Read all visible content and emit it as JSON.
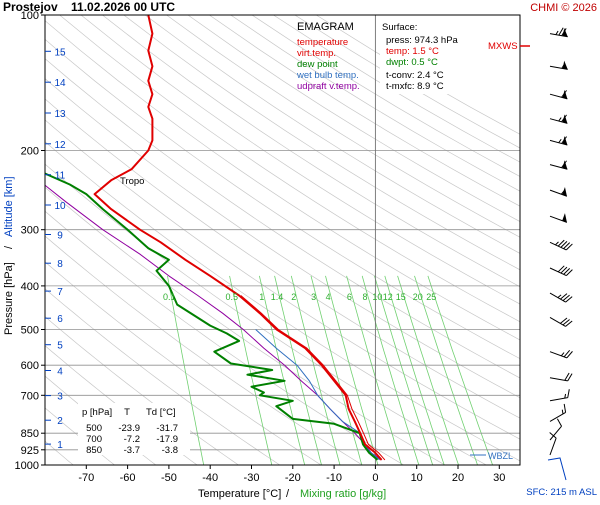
{
  "header": {
    "station_date": "Prostejov    11.02.2026 00 UTC",
    "credit": "CHMI © 2026"
  },
  "legend": {
    "title": "EMAGRAM",
    "entries": [
      {
        "label": "temperature",
        "color": "#e00000"
      },
      {
        "label": "virt.temp.",
        "color": "#e00000"
      },
      {
        "label": "dew point",
        "color": "#008000"
      },
      {
        "label": "wet bulb temp.",
        "color": "#3070c0"
      },
      {
        "label": "udpraft v.temp.",
        "color": "#9000a0"
      }
    ]
  },
  "surface": {
    "title": "Surface:",
    "press": "press: 974.3 hPa",
    "temp": "temp: 1.5 °C",
    "dwpt": "dwpt: 0.5 °C",
    "tconv": "t-conv: 2.4 °C",
    "tmxfc": "t-mxfc: 8.9 °C"
  },
  "level_table": {
    "header": [
      "p [hPa]",
      "T",
      "Td [°C]"
    ],
    "rows": [
      [
        "500",
        "-23.9",
        "-31.7"
      ],
      [
        "700",
        "-7.2",
        "-17.9"
      ],
      [
        "850",
        "-3.7",
        "-3.8"
      ]
    ]
  },
  "annotations": {
    "tropo": "Tropo",
    "wbzl": "WBZL",
    "mxws": "MXWS",
    "sfc": "SFC: 215 m ASL"
  },
  "axes": {
    "xlabel_temp": "Temperature [°C]",
    "xlabel_sep": "/",
    "xlabel_mix": "Mixing ratio [g/kg]",
    "ylabel_press": "Pressure [hPa]",
    "ylabel_sep": "/",
    "ylabel_alt": "Altitude [km]"
  },
  "colors": {
    "temperature": "#e00000",
    "dewpoint": "#008000",
    "wetbulb": "#3070c0",
    "parcel": "#9000a0",
    "mixing": "#70d070",
    "adiabat": "#c8c8c8",
    "axis_blue": "#0040c0"
  },
  "chart_data": {
    "type": "line",
    "x_axis": {
      "label": "Temperature [°C]",
      "range": [
        -80,
        35
      ],
      "ticks": [
        -70,
        -60,
        -50,
        -40,
        -30,
        -20,
        -10,
        0,
        10,
        20,
        30
      ]
    },
    "y_axis": {
      "label": "Pressure [hPa]",
      "scale": "log",
      "range": [
        1000,
        100
      ],
      "ticks": [
        100,
        200,
        300,
        400,
        500,
        600,
        700,
        850,
        925,
        1000
      ]
    },
    "altitude_ticks_km": [
      1,
      2,
      3,
      4,
      5,
      6,
      7,
      8,
      9,
      10,
      11,
      12,
      13,
      14,
      15
    ],
    "mixing_ratio_labels_gkg": [
      "0.1",
      "0.5",
      "1",
      "1.4",
      "2",
      "3",
      "4",
      "6",
      "8",
      "10",
      "12",
      "15",
      "20",
      "25"
    ],
    "grid": true,
    "series": [
      {
        "name": "temperature",
        "points": [
          [
            1.5,
            974
          ],
          [
            0,
            940
          ],
          [
            -2.5,
            900
          ],
          [
            -3.7,
            850
          ],
          [
            -5,
            800
          ],
          [
            -6.5,
            750
          ],
          [
            -7.2,
            700
          ],
          [
            -10,
            650
          ],
          [
            -13,
            600
          ],
          [
            -17,
            550
          ],
          [
            -23.9,
            500
          ],
          [
            -28,
            460
          ],
          [
            -33,
            420
          ],
          [
            -40,
            380
          ],
          [
            -46,
            350
          ],
          [
            -52,
            320
          ],
          [
            -57,
            300
          ],
          [
            -64,
            270
          ],
          [
            -68,
            250
          ],
          [
            -64,
            233
          ],
          [
            -59,
            220
          ],
          [
            -55,
            200
          ],
          [
            -54,
            190
          ],
          [
            -54,
            180
          ],
          [
            -54,
            170
          ],
          [
            -55,
            160
          ],
          [
            -54,
            150
          ],
          [
            -55,
            140
          ],
          [
            -54,
            130
          ],
          [
            -55,
            120
          ],
          [
            -54,
            110
          ],
          [
            -55,
            100
          ]
        ]
      },
      {
        "name": "dew point",
        "points": [
          [
            0.5,
            974
          ],
          [
            -1.5,
            940
          ],
          [
            -3,
            900
          ],
          [
            -3.8,
            850
          ],
          [
            -10,
            810
          ],
          [
            -20,
            790
          ],
          [
            -22,
            765
          ],
          [
            -24,
            740
          ],
          [
            -20,
            720
          ],
          [
            -28,
            700
          ],
          [
            -27,
            690
          ],
          [
            -30,
            670
          ],
          [
            -22,
            650
          ],
          [
            -31,
            630
          ],
          [
            -25,
            615
          ],
          [
            -35,
            595
          ],
          [
            -39,
            560
          ],
          [
            -33,
            530
          ],
          [
            -36,
            510
          ],
          [
            -40,
            490
          ],
          [
            -48,
            440
          ],
          [
            -50,
            400
          ],
          [
            -53,
            370
          ],
          [
            -50,
            350
          ],
          [
            -55,
            330
          ],
          [
            -60,
            300
          ],
          [
            -66,
            270
          ],
          [
            -70,
            250
          ],
          [
            -74,
            238
          ],
          [
            -80,
            225
          ]
        ]
      },
      {
        "name": "wet bulb temp.",
        "points": [
          [
            1,
            974
          ],
          [
            -1,
            940
          ],
          [
            -3,
            900
          ],
          [
            -3.7,
            850
          ],
          [
            -8,
            800
          ],
          [
            -11,
            750
          ],
          [
            -14,
            700
          ],
          [
            -16,
            650
          ],
          [
            -19,
            600
          ],
          [
            -24,
            550
          ],
          [
            -29,
            500
          ]
        ]
      },
      {
        "name": "udpraft v.temp.",
        "points": [
          [
            1.5,
            974
          ],
          [
            -1,
            940
          ],
          [
            -2.5,
            900
          ],
          [
            -5,
            850
          ],
          [
            -8,
            800
          ],
          [
            -11,
            750
          ],
          [
            -14,
            700
          ],
          [
            -18,
            650
          ],
          [
            -22,
            600
          ],
          [
            -27,
            550
          ],
          [
            -32,
            500
          ],
          [
            -37,
            460
          ],
          [
            -43,
            420
          ],
          [
            -50,
            380
          ],
          [
            -57,
            340
          ],
          [
            -66,
            300
          ],
          [
            -75,
            260
          ],
          [
            -81,
            235
          ]
        ]
      }
    ],
    "wind_barbs": [
      {
        "p": 110,
        "dir": 280,
        "kt": 75
      },
      {
        "p": 130,
        "dir": 280,
        "kt": 55
      },
      {
        "p": 150,
        "dir": 285,
        "kt": 60
      },
      {
        "p": 170,
        "dir": 285,
        "kt": 65
      },
      {
        "p": 190,
        "dir": 285,
        "kt": 65
      },
      {
        "p": 215,
        "dir": 285,
        "kt": 60
      },
      {
        "p": 245,
        "dir": 290,
        "kt": 55
      },
      {
        "p": 280,
        "dir": 290,
        "kt": 50
      },
      {
        "p": 320,
        "dir": 295,
        "kt": 45
      },
      {
        "p": 365,
        "dir": 295,
        "kt": 40
      },
      {
        "p": 415,
        "dir": 300,
        "kt": 35
      },
      {
        "p": 470,
        "dir": 300,
        "kt": 30
      },
      {
        "p": 560,
        "dir": 290,
        "kt": 25
      },
      {
        "p": 640,
        "dir": 280,
        "kt": 20
      },
      {
        "p": 720,
        "dir": 260,
        "kt": 15
      },
      {
        "p": 800,
        "dir": 240,
        "kt": 15
      },
      {
        "p": 880,
        "dir": 220,
        "kt": 10
      },
      {
        "p": 950,
        "dir": 200,
        "kt": 10
      }
    ]
  }
}
